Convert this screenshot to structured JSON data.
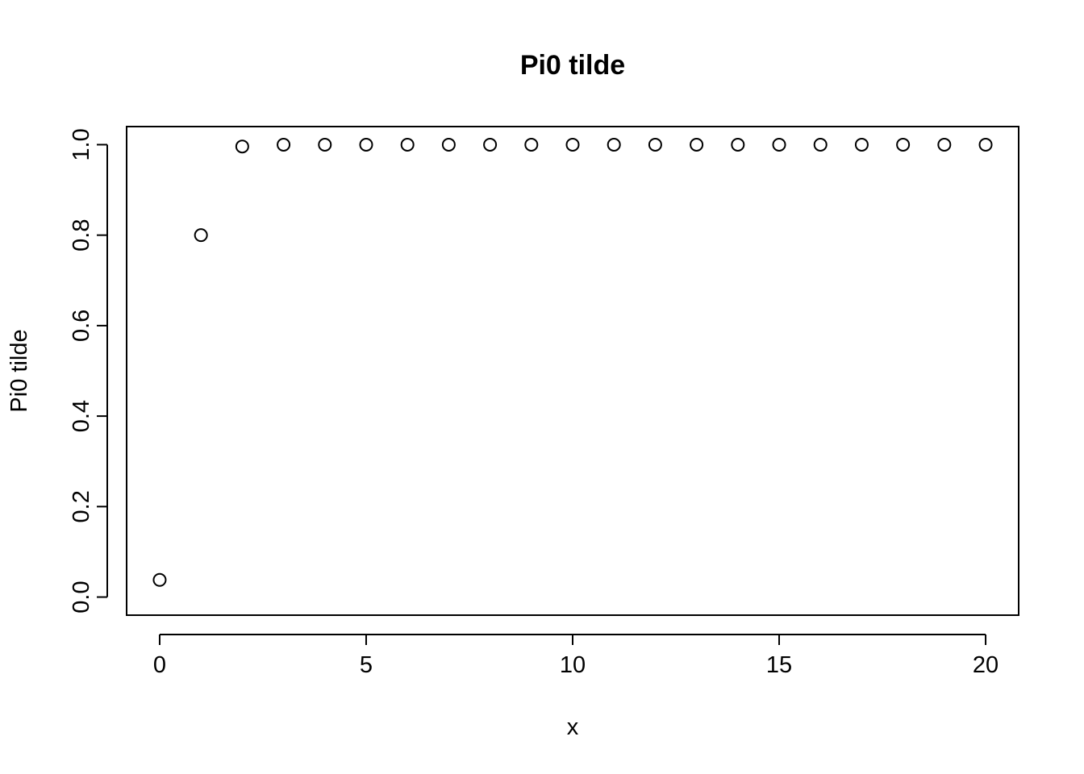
{
  "chart_data": {
    "type": "scatter",
    "title": "Pi0 tilde",
    "xlabel": "x",
    "ylabel": "Pi0 tilde",
    "x": [
      0,
      1,
      2,
      3,
      4,
      5,
      6,
      7,
      8,
      9,
      10,
      11,
      12,
      13,
      14,
      15,
      16,
      17,
      18,
      19,
      20
    ],
    "y": [
      0.038,
      0.8,
      0.996,
      1.0,
      1.0,
      1.0,
      1.0,
      1.0,
      1.0,
      1.0,
      1.0,
      1.0,
      1.0,
      1.0,
      1.0,
      1.0,
      1.0,
      1.0,
      1.0,
      1.0,
      1.0
    ],
    "xlim": [
      -0.8,
      20.8
    ],
    "ylim": [
      -0.04,
      1.04
    ],
    "x_ticks": [
      0,
      5,
      10,
      15,
      20
    ],
    "x_tick_labels": [
      "0",
      "5",
      "10",
      "15",
      "20"
    ],
    "y_ticks": [
      0.0,
      0.2,
      0.4,
      0.6,
      0.8,
      1.0
    ],
    "y_tick_labels": [
      "0.0",
      "0.2",
      "0.4",
      "0.6",
      "0.8",
      "1.0"
    ],
    "marker": "open-circle",
    "color": "#000000",
    "grid": false,
    "legend": "none"
  }
}
